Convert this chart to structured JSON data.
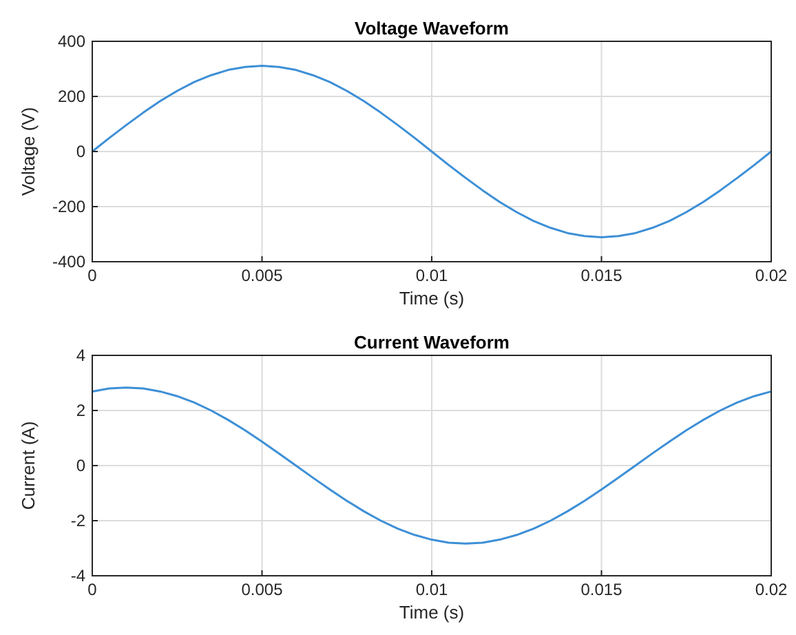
{
  "chart_data": [
    {
      "type": "line",
      "title": "Voltage Waveform",
      "xlabel": "Time (s)",
      "ylabel": "Voltage (V)",
      "xlim": [
        0,
        0.02
      ],
      "xticks": [
        0,
        0.005,
        0.01,
        0.015,
        0.02
      ],
      "ylim": [
        -400,
        400
      ],
      "yticks": [
        -400,
        -200,
        0,
        200,
        400
      ],
      "grid": true,
      "x": [
        0,
        0.0005,
        0.001,
        0.0015,
        0.002,
        0.0025,
        0.003,
        0.0035,
        0.004,
        0.0045,
        0.005,
        0.0055,
        0.006,
        0.0065,
        0.007,
        0.0075,
        0.008,
        0.0085,
        0.009,
        0.0095,
        0.01,
        0.0105,
        0.011,
        0.0115,
        0.012,
        0.0125,
        0.013,
        0.0135,
        0.014,
        0.0145,
        0.015,
        0.0155,
        0.016,
        0.0165,
        0.017,
        0.0175,
        0.018,
        0.0185,
        0.019,
        0.0195,
        0.02
      ],
      "series": [
        {
          "color": "#3d8fd6",
          "values": [
            0,
            49,
            96,
            141,
            183,
            220,
            252,
            277,
            296,
            307,
            311,
            307,
            296,
            277,
            252,
            220,
            183,
            141,
            96,
            49,
            0,
            -49,
            -96,
            -141,
            -183,
            -220,
            -252,
            -277,
            -296,
            -307,
            -311,
            -307,
            -296,
            -277,
            -252,
            -220,
            -183,
            -141,
            -96,
            -49,
            0
          ]
        }
      ]
    },
    {
      "type": "line",
      "title": "Current Waveform",
      "xlabel": "Time (s)",
      "ylabel": "Current (A)",
      "xlim": [
        0,
        0.02
      ],
      "xticks": [
        0,
        0.005,
        0.01,
        0.015,
        0.02
      ],
      "ylim": [
        -4,
        4
      ],
      "yticks": [
        -4,
        -2,
        0,
        2,
        4
      ],
      "grid": true,
      "x": [
        0,
        0.0005,
        0.001,
        0.0015,
        0.002,
        0.0025,
        0.003,
        0.0035,
        0.004,
        0.0045,
        0.005,
        0.0055,
        0.006,
        0.0065,
        0.007,
        0.0075,
        0.008,
        0.0085,
        0.009,
        0.0095,
        0.01,
        0.0105,
        0.011,
        0.0115,
        0.012,
        0.0125,
        0.013,
        0.0135,
        0.014,
        0.0145,
        0.015,
        0.0155,
        0.016,
        0.0165,
        0.017,
        0.0175,
        0.018,
        0.0185,
        0.019,
        0.0195,
        0.02
      ],
      "series": [
        {
          "color": "#3d8fd6",
          "values": [
            2.69,
            2.8,
            2.83,
            2.8,
            2.69,
            2.52,
            2.29,
            2.0,
            1.66,
            1.28,
            0.87,
            0.44,
            0,
            -0.44,
            -0.87,
            -1.28,
            -1.66,
            -2.0,
            -2.29,
            -2.52,
            -2.69,
            -2.8,
            -2.83,
            -2.8,
            -2.69,
            -2.52,
            -2.29,
            -2.0,
            -1.66,
            -1.28,
            -0.87,
            -0.44,
            0,
            0.44,
            0.87,
            1.28,
            1.66,
            2.0,
            2.29,
            2.52,
            2.69
          ]
        }
      ]
    }
  ]
}
